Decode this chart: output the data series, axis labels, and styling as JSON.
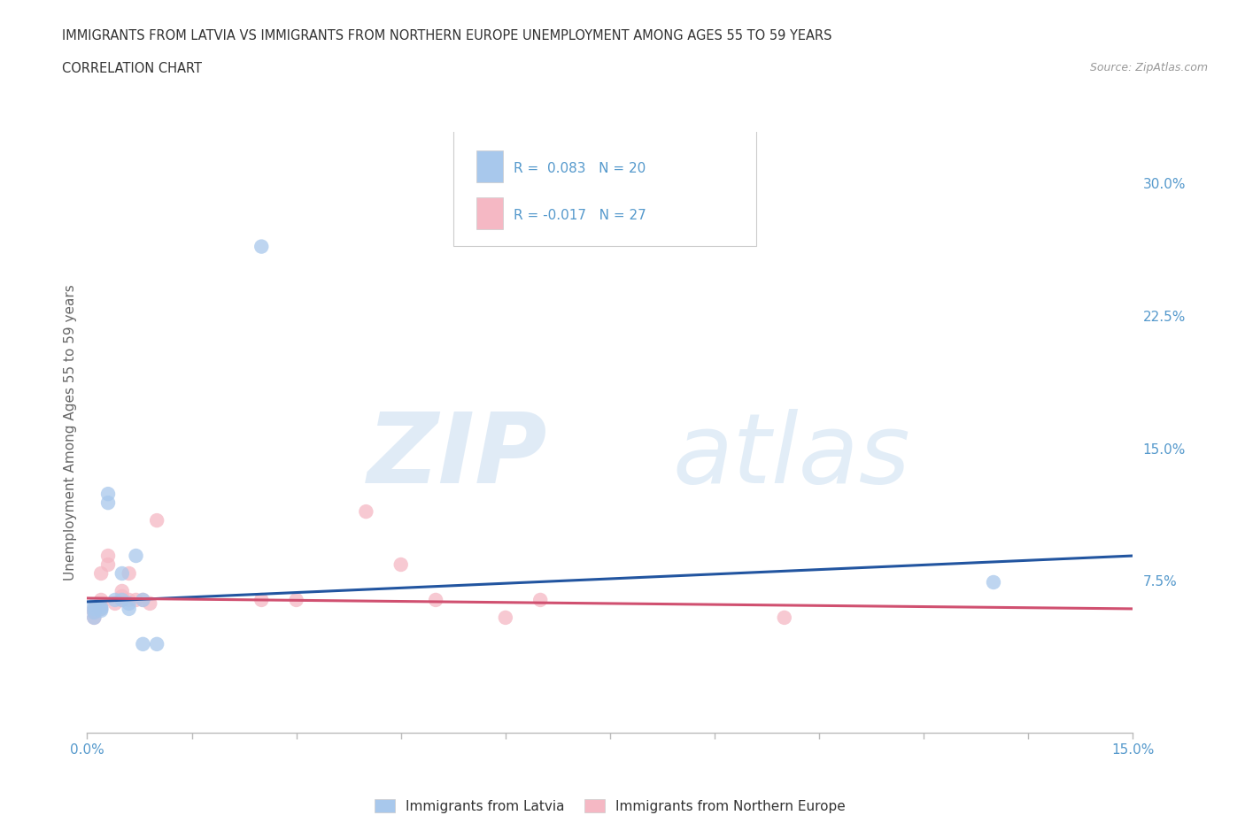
{
  "title_line1": "IMMIGRANTS FROM LATVIA VS IMMIGRANTS FROM NORTHERN EUROPE UNEMPLOYMENT AMONG AGES 55 TO 59 YEARS",
  "title_line2": "CORRELATION CHART",
  "source_text": "Source: ZipAtlas.com",
  "ylabel": "Unemployment Among Ages 55 to 59 years",
  "xlim": [
    0,
    0.15
  ],
  "ylim": [
    -0.01,
    0.33
  ],
  "yticks": [
    0.0,
    0.075,
    0.15,
    0.225,
    0.3
  ],
  "ytick_labels": [
    "",
    "7.5%",
    "15.0%",
    "22.5%",
    "30.0%"
  ],
  "xticks": [
    0,
    0.015,
    0.03,
    0.045,
    0.06,
    0.075,
    0.09,
    0.105,
    0.12,
    0.135,
    0.15
  ],
  "xtick_labels": [
    "0.0%",
    "",
    "",
    "",
    "",
    "",
    "",
    "",
    "",
    "",
    "15.0%"
  ],
  "latvia_R": 0.083,
  "latvia_N": 20,
  "northern_R": -0.017,
  "northern_N": 27,
  "latvia_color": "#A8C8EC",
  "northern_color": "#F5B8C4",
  "latvia_line_color": "#2255A0",
  "northern_line_color": "#D05070",
  "background_color": "#FFFFFF",
  "grid_color": "#CCCCCC",
  "axis_label_color": "#5599CC",
  "title_color": "#333333",
  "latvia_x": [
    0.001,
    0.001,
    0.001,
    0.001,
    0.002,
    0.002,
    0.002,
    0.003,
    0.003,
    0.004,
    0.005,
    0.005,
    0.006,
    0.006,
    0.007,
    0.008,
    0.008,
    0.01,
    0.025,
    0.13
  ],
  "latvia_y": [
    0.06,
    0.062,
    0.058,
    0.055,
    0.06,
    0.061,
    0.059,
    0.12,
    0.125,
    0.065,
    0.065,
    0.08,
    0.06,
    0.063,
    0.09,
    0.04,
    0.065,
    0.04,
    0.265,
    0.075
  ],
  "northern_x": [
    0.001,
    0.001,
    0.001,
    0.002,
    0.002,
    0.002,
    0.002,
    0.003,
    0.003,
    0.004,
    0.005,
    0.005,
    0.005,
    0.006,
    0.006,
    0.007,
    0.008,
    0.009,
    0.01,
    0.025,
    0.03,
    0.04,
    0.045,
    0.05,
    0.06,
    0.065,
    0.1
  ],
  "northern_y": [
    0.06,
    0.058,
    0.055,
    0.06,
    0.062,
    0.065,
    0.08,
    0.085,
    0.09,
    0.063,
    0.065,
    0.067,
    0.07,
    0.065,
    0.08,
    0.065,
    0.065,
    0.063,
    0.11,
    0.065,
    0.065,
    0.115,
    0.085,
    0.065,
    0.055,
    0.065,
    0.055
  ],
  "legend_text_color": "#333333",
  "watermark_zip_color": "#C8DCF0",
  "watermark_atlas_color": "#C0D8EE"
}
